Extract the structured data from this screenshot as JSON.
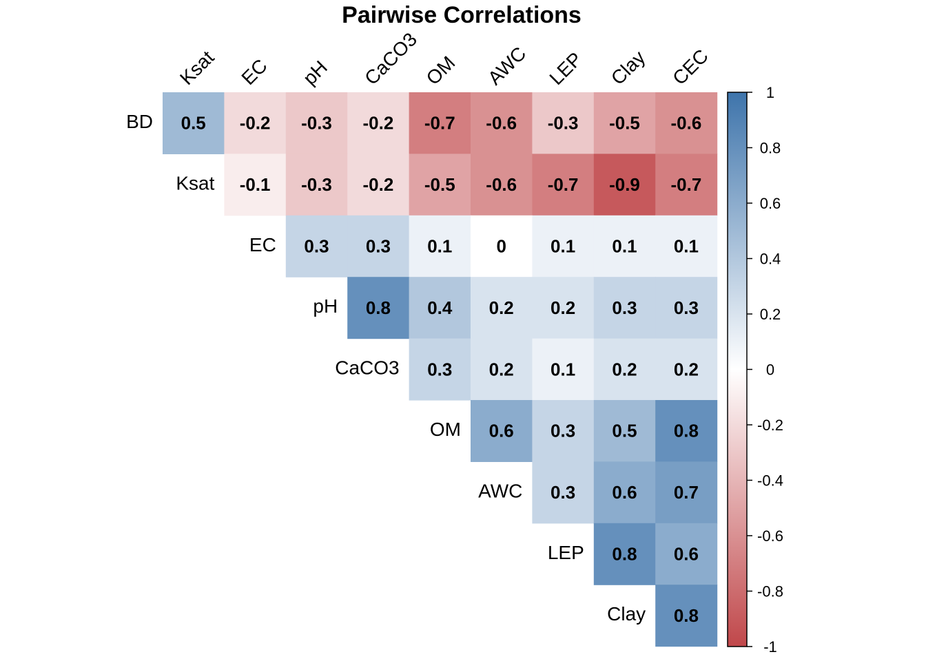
{
  "chart_data": {
    "type": "heatmap",
    "title": "Pairwise Correlations",
    "columns": [
      "Ksat",
      "EC",
      "pH",
      "CaCO3",
      "OM",
      "AWC",
      "LEP",
      "Clay",
      "CEC"
    ],
    "rows": [
      "BD",
      "Ksat",
      "EC",
      "pH",
      "CaCO3",
      "OM",
      "AWC",
      "LEP",
      "Clay"
    ],
    "values": [
      [
        0.5,
        -0.2,
        -0.3,
        -0.2,
        -0.7,
        -0.6,
        -0.3,
        -0.5,
        -0.6
      ],
      [
        null,
        -0.1,
        -0.3,
        -0.2,
        -0.5,
        -0.6,
        -0.7,
        -0.9,
        -0.7
      ],
      [
        null,
        null,
        0.3,
        0.3,
        0.1,
        0,
        0.1,
        0.1,
        0.1
      ],
      [
        null,
        null,
        null,
        0.8,
        0.4,
        0.2,
        0.2,
        0.3,
        0.3
      ],
      [
        null,
        null,
        null,
        null,
        0.3,
        0.2,
        0.1,
        0.2,
        0.2
      ],
      [
        null,
        null,
        null,
        null,
        null,
        0.6,
        0.3,
        0.5,
        0.8
      ],
      [
        null,
        null,
        null,
        null,
        null,
        null,
        0.3,
        0.6,
        0.7
      ],
      [
        null,
        null,
        null,
        null,
        null,
        null,
        null,
        0.8,
        0.6
      ],
      [
        null,
        null,
        null,
        null,
        null,
        null,
        null,
        null,
        0.8
      ]
    ],
    "colorbar": {
      "range": [
        -1,
        1
      ],
      "ticks": [
        1,
        0.8,
        0.6,
        0.4,
        0.2,
        0,
        -0.2,
        -0.4,
        -0.6,
        -0.8,
        -1
      ],
      "low_color": "#C0474A",
      "mid_color": "#FFFFFF",
      "high_color": "#3E74AB"
    }
  }
}
